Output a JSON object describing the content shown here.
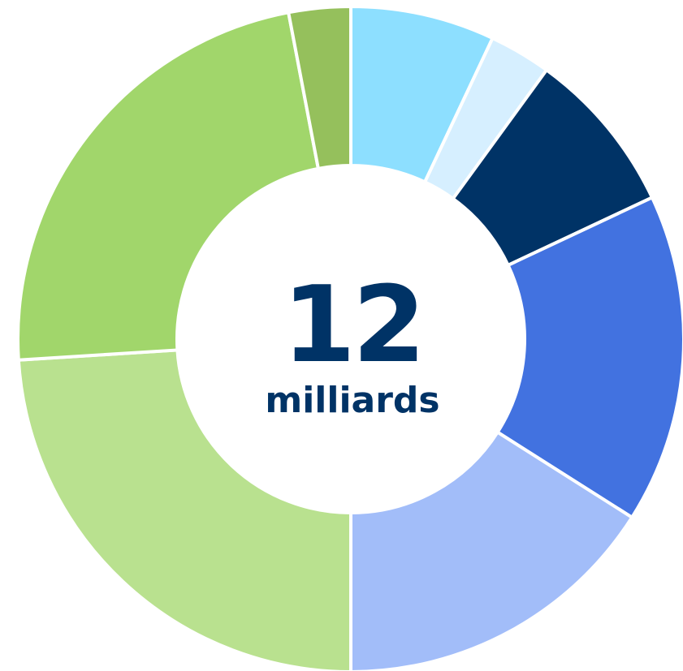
{
  "chart_data": {
    "type": "donut",
    "values": [
      7,
      3,
      8,
      16,
      16,
      24,
      23,
      3
    ],
    "colors": [
      "#8ddfff",
      "#d6efff",
      "#003366",
      "#4272e0",
      "#a2bdf9",
      "#b9e18f",
      "#a1d66b",
      "#95c05c"
    ],
    "center_value": 12,
    "center_label": "milliards"
  }
}
